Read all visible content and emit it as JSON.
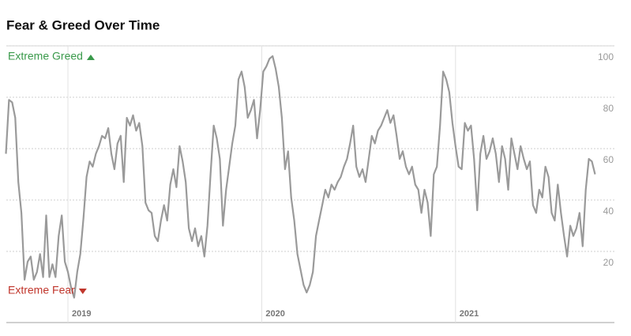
{
  "chart_data": {
    "type": "line",
    "title": "Fear & Greed Over Time",
    "annotations": {
      "top": "Extreme Greed",
      "bottom": "Extreme Fear"
    },
    "annotation_colors": {
      "top": "#3a9a4b",
      "bottom": "#c0362c"
    },
    "xlim": [
      2018.682,
      2021.82
    ],
    "xticks": [
      2019,
      2020,
      2021
    ],
    "ylim": [
      0,
      100
    ],
    "yticks": [
      20,
      40,
      60,
      80,
      100
    ],
    "grid": true,
    "x": [
      2018.68,
      2018.696,
      2018.712,
      2018.728,
      2018.744,
      2018.76,
      2018.776,
      2018.792,
      2018.808,
      2018.824,
      2018.84,
      2018.856,
      2018.872,
      2018.888,
      2018.904,
      2018.92,
      2018.936,
      2018.952,
      2018.968,
      2018.984,
      2019.0,
      2019.016,
      2019.032,
      2019.048,
      2019.064,
      2019.08,
      2019.096,
      2019.112,
      2019.128,
      2019.144,
      2019.16,
      2019.176,
      2019.192,
      2019.208,
      2019.224,
      2019.24,
      2019.256,
      2019.272,
      2019.288,
      2019.304,
      2019.32,
      2019.336,
      2019.352,
      2019.368,
      2019.384,
      2019.4,
      2019.416,
      2019.432,
      2019.448,
      2019.464,
      2019.48,
      2019.496,
      2019.512,
      2019.528,
      2019.544,
      2019.56,
      2019.576,
      2019.592,
      2019.608,
      2019.624,
      2019.64,
      2019.656,
      2019.672,
      2019.688,
      2019.704,
      2019.72,
      2019.736,
      2019.752,
      2019.768,
      2019.784,
      2019.8,
      2019.816,
      2019.832,
      2019.848,
      2019.864,
      2019.88,
      2019.896,
      2019.912,
      2019.928,
      2019.944,
      2019.96,
      2019.976,
      2019.992,
      2020.008,
      2020.024,
      2020.04,
      2020.056,
      2020.072,
      2020.088,
      2020.104,
      2020.12,
      2020.136,
      2020.152,
      2020.168,
      2020.184,
      2020.2,
      2020.216,
      2020.232,
      2020.248,
      2020.264,
      2020.28,
      2020.296,
      2020.312,
      2020.328,
      2020.344,
      2020.36,
      2020.376,
      2020.392,
      2020.408,
      2020.424,
      2020.44,
      2020.456,
      2020.472,
      2020.488,
      2020.504,
      2020.52,
      2020.536,
      2020.552,
      2020.568,
      2020.584,
      2020.6,
      2020.616,
      2020.632,
      2020.648,
      2020.664,
      2020.68,
      2020.696,
      2020.712,
      2020.728,
      2020.744,
      2020.76,
      2020.776,
      2020.792,
      2020.808,
      2020.824,
      2020.84,
      2020.856,
      2020.872,
      2020.888,
      2020.904,
      2020.92,
      2020.936,
      2020.952,
      2020.968,
      2020.984,
      2021.0,
      2021.016,
      2021.032,
      2021.048,
      2021.064,
      2021.08,
      2021.096,
      2021.112,
      2021.128,
      2021.144,
      2021.16,
      2021.176,
      2021.192,
      2021.208,
      2021.224,
      2021.24,
      2021.256,
      2021.272,
      2021.288,
      2021.304,
      2021.32,
      2021.336,
      2021.352,
      2021.368,
      2021.384,
      2021.4,
      2021.416,
      2021.432,
      2021.448,
      2021.464,
      2021.48,
      2021.496,
      2021.512,
      2021.528,
      2021.544,
      2021.56,
      2021.576,
      2021.592,
      2021.608,
      2021.624,
      2021.64,
      2021.656,
      2021.672,
      2021.688,
      2021.704,
      2021.72
    ],
    "series": [
      {
        "color": "#9a9a9a",
        "values": [
          58,
          79,
          78,
          72,
          47,
          35,
          9,
          16,
          18,
          9,
          12,
          19,
          10,
          34,
          10,
          15,
          10,
          26,
          34,
          16,
          12,
          6,
          2,
          12,
          19,
          33,
          49,
          55,
          53,
          58,
          61,
          65,
          64,
          68,
          58,
          52,
          62,
          65,
          47,
          72,
          69,
          73,
          67,
          70,
          61,
          39,
          36,
          35,
          26,
          24,
          32,
          38,
          32,
          46,
          52,
          45,
          61,
          55,
          47,
          29,
          24,
          29,
          22,
          26,
          18,
          30,
          50,
          69,
          64,
          56,
          30,
          44,
          53,
          62,
          69,
          87,
          90,
          84,
          72,
          75,
          79,
          64,
          75,
          90,
          92,
          95,
          96,
          91,
          84,
          72,
          52,
          59,
          41,
          32,
          19,
          13,
          7,
          4,
          7,
          12,
          26,
          32,
          38,
          44,
          41,
          46,
          44,
          47,
          49,
          53,
          56,
          62,
          69,
          53,
          49,
          52,
          47,
          56,
          65,
          62,
          67,
          69,
          72,
          75,
          70,
          73,
          65,
          56,
          59,
          53,
          50,
          53,
          46,
          44,
          35,
          44,
          39,
          26,
          50,
          53,
          69,
          90,
          87,
          82,
          70,
          61,
          53,
          52,
          70,
          67,
          69,
          56,
          36,
          58,
          65,
          56,
          59,
          64,
          58,
          47,
          61,
          56,
          44,
          64,
          58,
          52,
          61,
          56,
          52,
          55,
          38,
          35,
          44,
          41,
          53,
          49,
          35,
          32,
          46,
          35,
          26,
          18,
          30,
          26,
          29,
          35,
          22,
          44,
          56,
          55,
          50
        ]
      }
    ]
  }
}
